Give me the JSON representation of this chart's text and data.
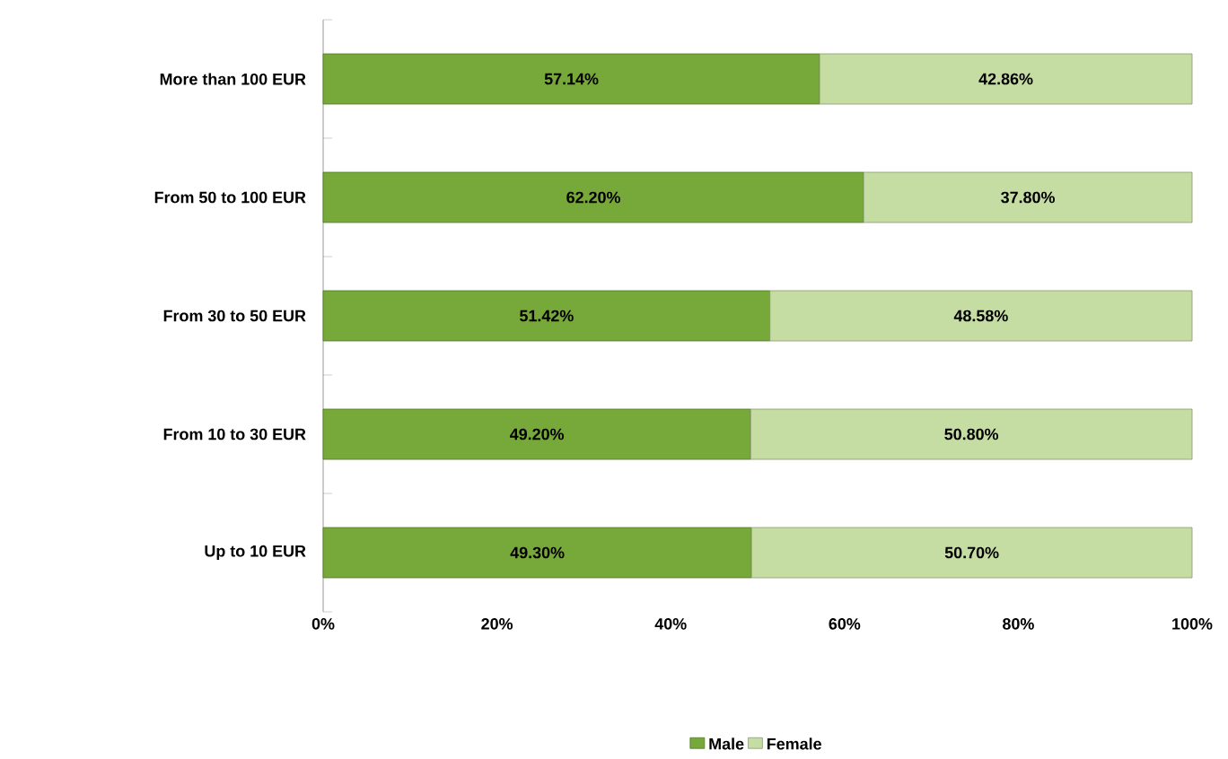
{
  "chart_data": {
    "type": "bar",
    "orientation": "horizontal",
    "stacked": true,
    "categories": [
      "More than 100 EUR",
      "From 50 to 100 EUR",
      "From 30 to 50 EUR",
      "From 10 to 30 EUR",
      "Up to 10 EUR"
    ],
    "series": [
      {
        "name": "Male",
        "color": "#77a83a",
        "values": [
          57.14,
          62.2,
          51.42,
          49.2,
          49.3
        ],
        "value_labels": [
          "57.14%",
          "62.20%",
          "51.42%",
          "49.20%",
          "49.30%"
        ]
      },
      {
        "name": "Female",
        "color": "#c5dda3",
        "values": [
          42.86,
          37.8,
          48.58,
          50.8,
          50.7
        ],
        "value_labels": [
          "42.86%",
          "37.80%",
          "48.58%",
          "50.80%",
          "50.70%"
        ]
      }
    ],
    "xlim": [
      0,
      100
    ],
    "xticks": [
      {
        "value": 0,
        "label": "0%"
      },
      {
        "value": 20,
        "label": "20%"
      },
      {
        "value": 40,
        "label": "40%"
      },
      {
        "value": 60,
        "label": "60%"
      },
      {
        "value": 80,
        "label": "80%"
      },
      {
        "value": 100,
        "label": "100%"
      }
    ],
    "legend": "bottom"
  }
}
